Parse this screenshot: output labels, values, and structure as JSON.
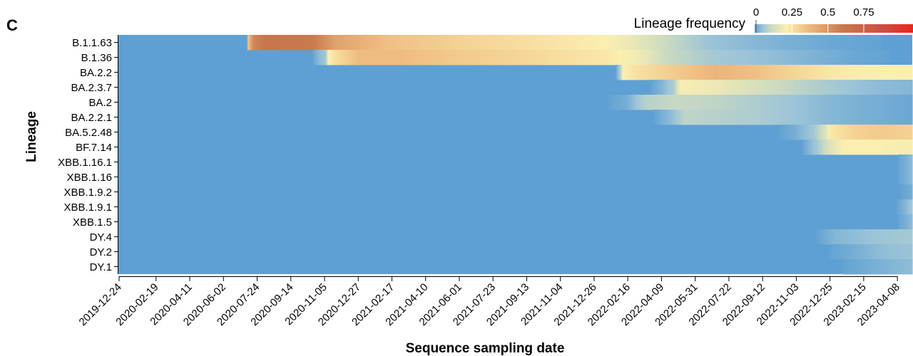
{
  "chart_data": {
    "type": "heatmap",
    "panel_label": "C",
    "xlabel": "Sequence sampling date",
    "ylabel": "Lineage",
    "legend": {
      "title": "Lineage frequency",
      "placement": "top-right",
      "ticks": [
        "0",
        "0.25",
        "0.5",
        "0.75"
      ],
      "tick_values": [
        0,
        0.25,
        0.5,
        0.75
      ],
      "range": [
        0,
        1
      ]
    },
    "colors": {
      "low": "#5ea0d3",
      "stops": [
        "#5ea0d3",
        "#9cc4d8",
        "#c8d9c2",
        "#fbefb0",
        "#eeb87c",
        "#c97a4e",
        "#cc4f44",
        "#e8261e"
      ]
    },
    "x_ticks": [
      "2019-12-24",
      "2020-02-19",
      "2020-04-11",
      "2020-06-02",
      "2020-07-24",
      "2020-09-14",
      "2020-11-05",
      "2020-12-27",
      "2021-02-17",
      "2021-04-10",
      "2021-06-01",
      "2021-07-23",
      "2021-09-13",
      "2021-11-04",
      "2021-12-26",
      "2022-02-16",
      "2022-04-09",
      "2022-05-31",
      "2022-07-22",
      "2022-09-12",
      "2022-11-03",
      "2022-12-25",
      "2023-02-15",
      "2023-04-08"
    ],
    "x_range": [
      "2019-12-24",
      "2023-05-01"
    ],
    "lineages": [
      "B.1.1.63",
      "B.1.36",
      "BA.2.2",
      "BA.2.3.7",
      "BA.2",
      "BA.2.2.1",
      "BA.5.2.48",
      "BF.7.14",
      "XBB.1.16.1",
      "XBB.1.16",
      "XBB.1.9.2",
      "XBB.1.9.1",
      "XBB.1.5",
      "DY.4",
      "DY.2",
      "DY.1"
    ],
    "series": [
      {
        "lineage": "B.1.1.63",
        "points": [
          [
            "2019-12-24",
            0
          ],
          [
            "2020-07-08",
            0
          ],
          [
            "2020-07-09",
            0.3
          ],
          [
            "2020-07-18",
            0.5
          ],
          [
            "2020-08-06",
            0.58
          ],
          [
            "2020-10-18",
            0.55
          ],
          [
            "2020-11-22",
            0.42
          ],
          [
            "2021-02-10",
            0.33
          ],
          [
            "2021-06-01",
            0.28
          ],
          [
            "2021-10-01",
            0.24
          ],
          [
            "2022-01-15",
            0.2
          ],
          [
            "2022-03-10",
            0.15
          ],
          [
            "2022-04-20",
            0.1
          ],
          [
            "2022-06-20",
            0.05
          ],
          [
            "2022-09-10",
            0.03
          ],
          [
            "2023-01-01",
            0.01
          ],
          [
            "2023-05-01",
            0
          ]
        ]
      },
      {
        "lineage": "B.1.36",
        "points": [
          [
            "2019-12-24",
            0
          ],
          [
            "2020-10-17",
            0
          ],
          [
            "2020-10-25",
            0.03
          ],
          [
            "2020-11-08",
            0.06
          ],
          [
            "2020-11-09",
            0.18
          ],
          [
            "2020-11-20",
            0.24
          ],
          [
            "2020-12-28",
            0.34
          ],
          [
            "2021-03-01",
            0.34
          ],
          [
            "2021-06-01",
            0.3
          ],
          [
            "2021-10-01",
            0.26
          ],
          [
            "2022-01-15",
            0.22
          ],
          [
            "2022-03-10",
            0.17
          ],
          [
            "2022-04-20",
            0.1
          ],
          [
            "2022-07-01",
            0.06
          ],
          [
            "2022-10-01",
            0.04
          ],
          [
            "2023-02-01",
            0.01
          ],
          [
            "2023-05-01",
            0
          ]
        ]
      },
      {
        "lineage": "BA.2.2",
        "points": [
          [
            "2019-12-24",
            0
          ],
          [
            "2022-01-28",
            0
          ],
          [
            "2022-02-05",
            0.08
          ],
          [
            "2022-02-08",
            0.2
          ],
          [
            "2022-03-01",
            0.24
          ],
          [
            "2022-05-01",
            0.3
          ],
          [
            "2022-07-01",
            0.36
          ],
          [
            "2022-09-01",
            0.33
          ],
          [
            "2022-11-01",
            0.27
          ],
          [
            "2023-01-01",
            0.22
          ],
          [
            "2023-03-01",
            0.2
          ],
          [
            "2023-05-01",
            0.2
          ]
        ]
      },
      {
        "lineage": "BA.2.3.7",
        "points": [
          [
            "2019-12-24",
            0
          ],
          [
            "2022-03-20",
            0
          ],
          [
            "2022-04-10",
            0.03
          ],
          [
            "2022-04-28",
            0.07
          ],
          [
            "2022-05-08",
            0.19
          ],
          [
            "2022-07-01",
            0.17
          ],
          [
            "2022-09-01",
            0.13
          ],
          [
            "2022-11-01",
            0.09
          ],
          [
            "2023-01-01",
            0.06
          ],
          [
            "2023-03-01",
            0.04
          ],
          [
            "2023-05-01",
            0.03
          ]
        ]
      },
      {
        "lineage": "BA.2",
        "points": [
          [
            "2019-12-24",
            0
          ],
          [
            "2022-01-10",
            0
          ],
          [
            "2022-02-15",
            0.02
          ],
          [
            "2022-03-15",
            0.08
          ],
          [
            "2022-05-01",
            0.1
          ],
          [
            "2022-07-01",
            0.09
          ],
          [
            "2022-09-01",
            0.07
          ],
          [
            "2022-11-01",
            0.05
          ],
          [
            "2023-01-01",
            0.03
          ],
          [
            "2023-03-01",
            0.02
          ],
          [
            "2023-05-01",
            0.01
          ]
        ]
      },
      {
        "lineage": "BA.2.2.1",
        "points": [
          [
            "2019-12-24",
            0
          ],
          [
            "2022-03-25",
            0
          ],
          [
            "2022-04-25",
            0.04
          ],
          [
            "2022-05-15",
            0.09
          ],
          [
            "2022-07-01",
            0.08
          ],
          [
            "2022-09-01",
            0.07
          ],
          [
            "2022-11-01",
            0.05
          ],
          [
            "2023-01-01",
            0.03
          ],
          [
            "2023-03-01",
            0.02
          ],
          [
            "2023-05-01",
            0.01
          ]
        ]
      },
      {
        "lineage": "BA.5.2.48",
        "points": [
          [
            "2019-12-24",
            0
          ],
          [
            "2022-10-01",
            0
          ],
          [
            "2022-11-01",
            0.02
          ],
          [
            "2022-12-01",
            0.06
          ],
          [
            "2022-12-20",
            0.15
          ],
          [
            "2022-12-25",
            0.22
          ],
          [
            "2023-02-01",
            0.28
          ],
          [
            "2023-03-15",
            0.3
          ],
          [
            "2023-05-01",
            0.28
          ]
        ]
      },
      {
        "lineage": "BF.7.14",
        "points": [
          [
            "2019-12-24",
            0
          ],
          [
            "2022-11-10",
            0
          ],
          [
            "2022-12-05",
            0.06
          ],
          [
            "2022-12-25",
            0.14
          ],
          [
            "2023-01-15",
            0.2
          ],
          [
            "2023-03-01",
            0.2
          ],
          [
            "2023-05-01",
            0.19
          ]
        ]
      },
      {
        "lineage": "XBB.1.16.1",
        "points": [
          [
            "2019-12-24",
            0
          ],
          [
            "2023-04-05",
            0
          ],
          [
            "2023-04-20",
            0.02
          ],
          [
            "2023-05-01",
            0.04
          ]
        ]
      },
      {
        "lineage": "XBB.1.16",
        "points": [
          [
            "2019-12-24",
            0
          ],
          [
            "2023-04-05",
            0
          ],
          [
            "2023-04-20",
            0.02
          ],
          [
            "2023-05-01",
            0.04
          ]
        ]
      },
      {
        "lineage": "XBB.1.9.2",
        "points": [
          [
            "2019-12-24",
            0
          ],
          [
            "2023-04-10",
            0
          ],
          [
            "2023-05-01",
            0.02
          ]
        ]
      },
      {
        "lineage": "XBB.1.9.1",
        "points": [
          [
            "2019-12-24",
            0
          ],
          [
            "2023-04-05",
            0
          ],
          [
            "2023-04-20",
            0.03
          ],
          [
            "2023-05-01",
            0.06
          ]
        ]
      },
      {
        "lineage": "XBB.1.5",
        "points": [
          [
            "2019-12-24",
            0
          ],
          [
            "2023-04-05",
            0
          ],
          [
            "2023-04-20",
            0.02
          ],
          [
            "2023-05-01",
            0.04
          ]
        ]
      },
      {
        "lineage": "DY.4",
        "points": [
          [
            "2019-12-24",
            0
          ],
          [
            "2022-12-01",
            0
          ],
          [
            "2023-01-01",
            0.03
          ],
          [
            "2023-03-01",
            0.05
          ],
          [
            "2023-05-01",
            0.06
          ]
        ]
      },
      {
        "lineage": "DY.2",
        "points": [
          [
            "2019-12-24",
            0
          ],
          [
            "2022-12-15",
            0
          ],
          [
            "2023-02-01",
            0.02
          ],
          [
            "2023-03-15",
            0.04
          ],
          [
            "2023-05-01",
            0.05
          ]
        ]
      },
      {
        "lineage": "DY.1",
        "points": [
          [
            "2019-12-24",
            0
          ],
          [
            "2023-01-01",
            0
          ],
          [
            "2023-03-01",
            0.02
          ],
          [
            "2023-05-01",
            0.04
          ]
        ]
      }
    ]
  }
}
